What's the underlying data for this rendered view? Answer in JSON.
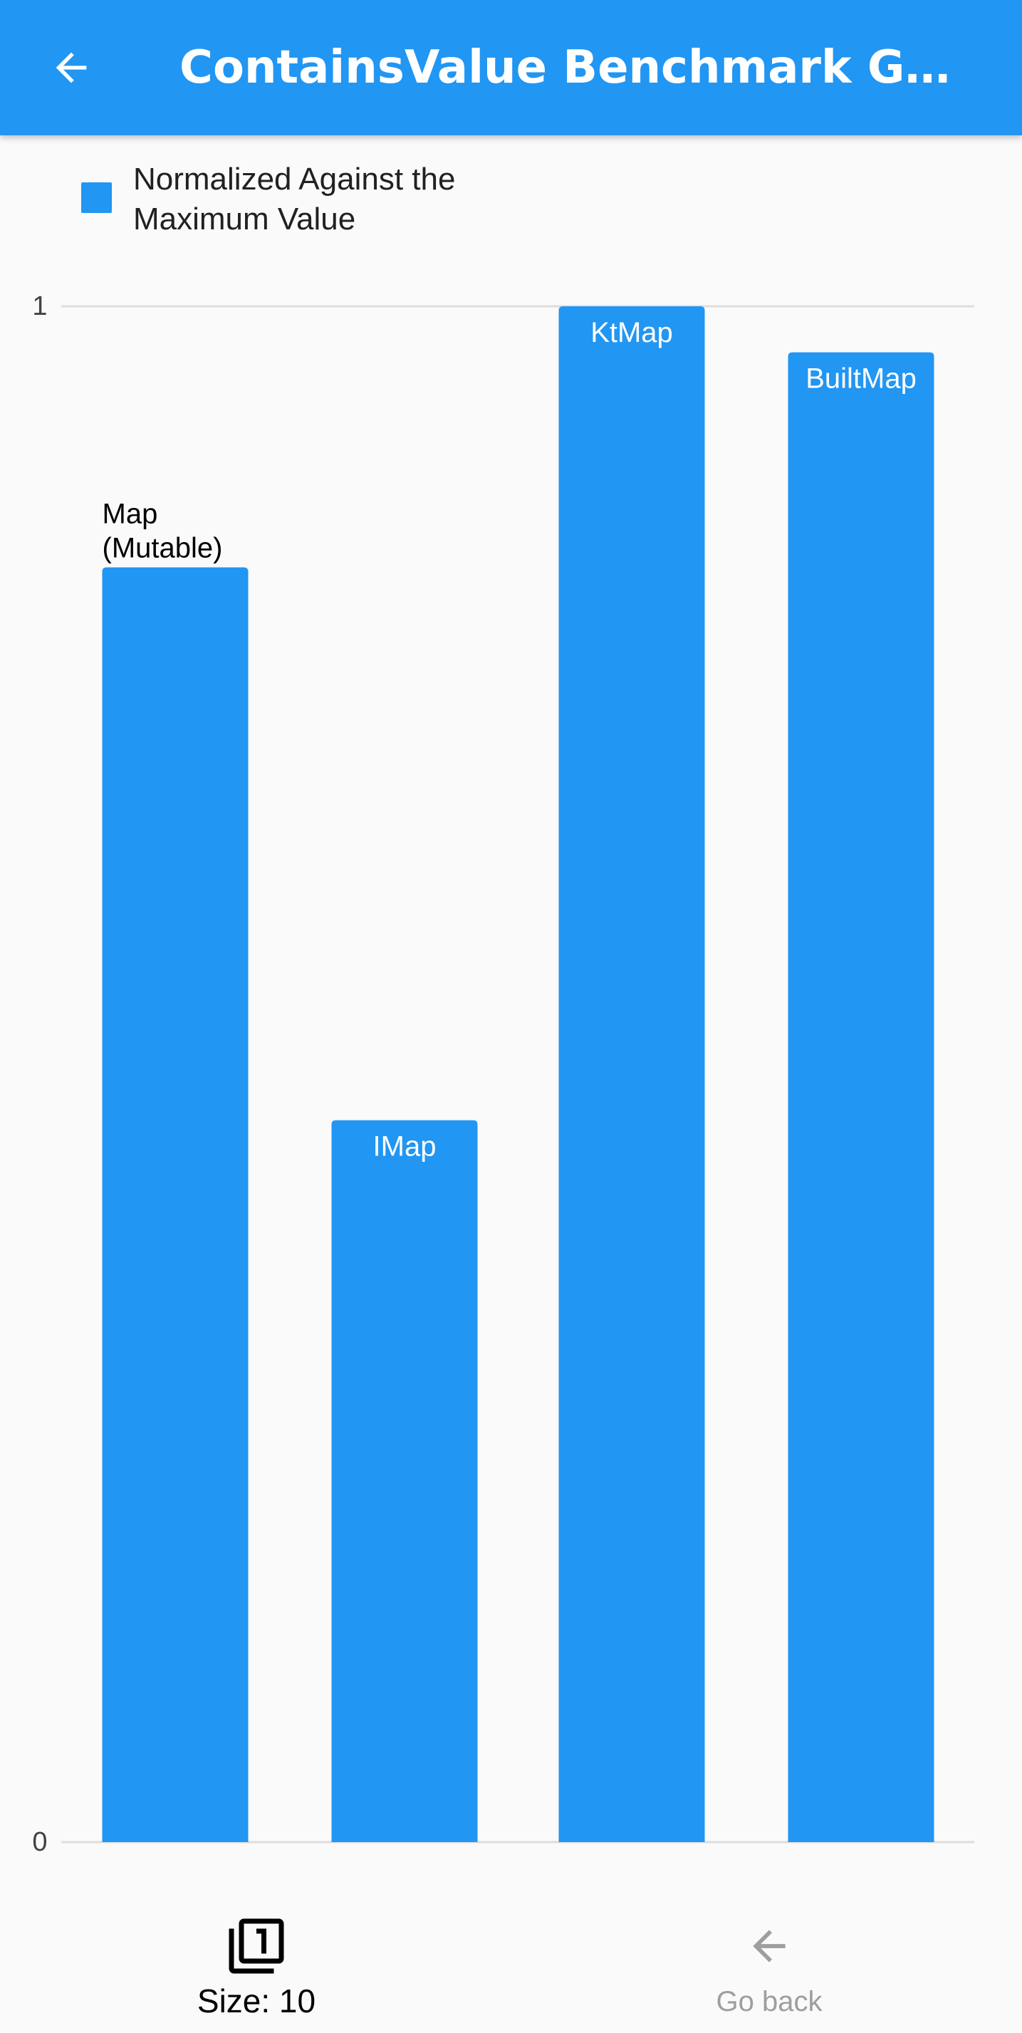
{
  "app_bar": {
    "title": "ContainsValue Benchmark Graph …",
    "back_icon": "arrow-back-icon"
  },
  "legend": {
    "label": "Normalized Against the Maximum Value",
    "color": "#2196F3"
  },
  "chart_data": {
    "type": "bar",
    "categories": [
      "Map (Mutable)",
      "IMap",
      "KtMap",
      "BuiltMap"
    ],
    "bar_labels": [
      "Map\n(Mutable)",
      "IMap",
      "KtMap",
      "BuiltMap"
    ],
    "series": [
      {
        "name": "Normalized Against the Maximum Value",
        "values": [
          0.83,
          0.47,
          1.0,
          0.97
        ]
      }
    ],
    "ylim": [
      0,
      1
    ],
    "yticks": [
      "0",
      "1"
    ],
    "grid": true,
    "legend_position": "top-left",
    "bar_color": "#2196F3"
  },
  "bottom_nav": {
    "size_label": "Size: 10",
    "size_icon": "filter-1-icon",
    "back_label": "Go back",
    "back_icon": "arrow-back-icon"
  }
}
